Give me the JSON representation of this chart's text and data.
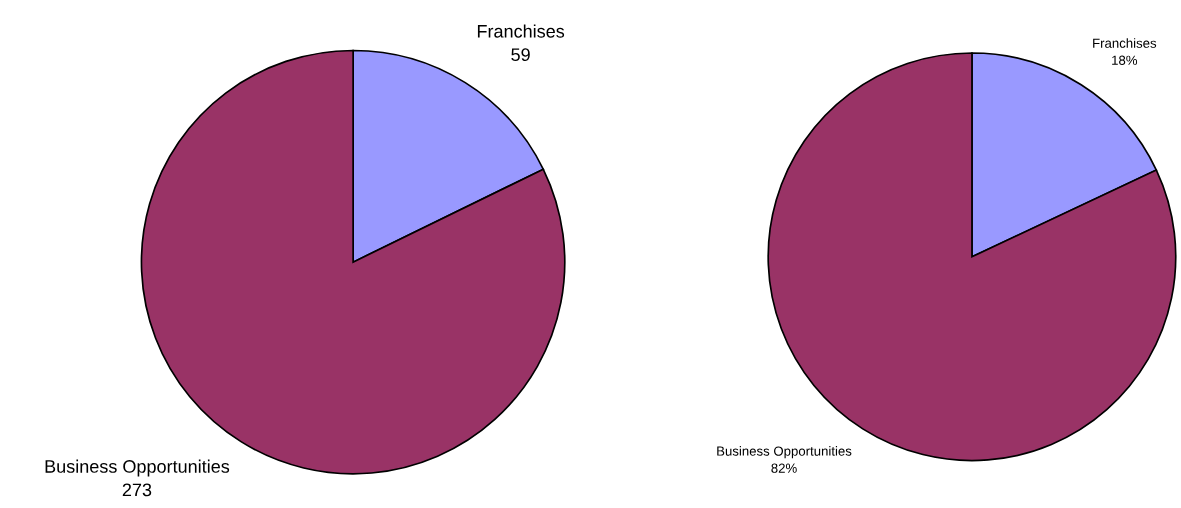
{
  "chart_data": [
    {
      "type": "pie",
      "categories": [
        "Franchises",
        "Business Opportunities"
      ],
      "values": [
        59,
        273
      ],
      "colors": [
        "#9999ff",
        "#993366"
      ],
      "data_labels": true
    },
    {
      "type": "pie",
      "categories": [
        "Franchises",
        "Business Opportunities"
      ],
      "values": [
        18,
        82
      ],
      "colors": [
        "#9999ff",
        "#993366"
      ],
      "value_labels": [
        "18%",
        "82%"
      ]
    }
  ]
}
